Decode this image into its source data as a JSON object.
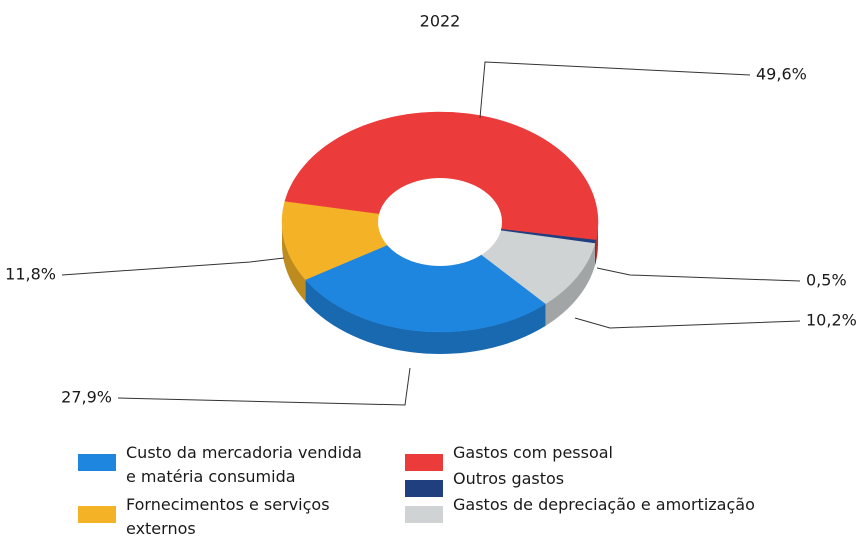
{
  "chart_data": {
    "type": "pie",
    "title": "2022",
    "categories": [
      "Custo da mercadoria vendida e matéria consumida",
      "Fornecimentos e serviços externos",
      "Gastos com pessoal",
      "Outros gastos",
      "Gastos de depreciação e amortização"
    ],
    "values": [
      27.9,
      11.8,
      49.6,
      0.5,
      10.2
    ],
    "value_labels": [
      "27,9%",
      "11,8%",
      "49,6%",
      "0,5%",
      "10,2%"
    ],
    "colors": [
      "#1f86e0",
      "#f4b227",
      "#ec3b3b",
      "#1f3f7f",
      "#cfd3d3"
    ],
    "legend": true
  }
}
